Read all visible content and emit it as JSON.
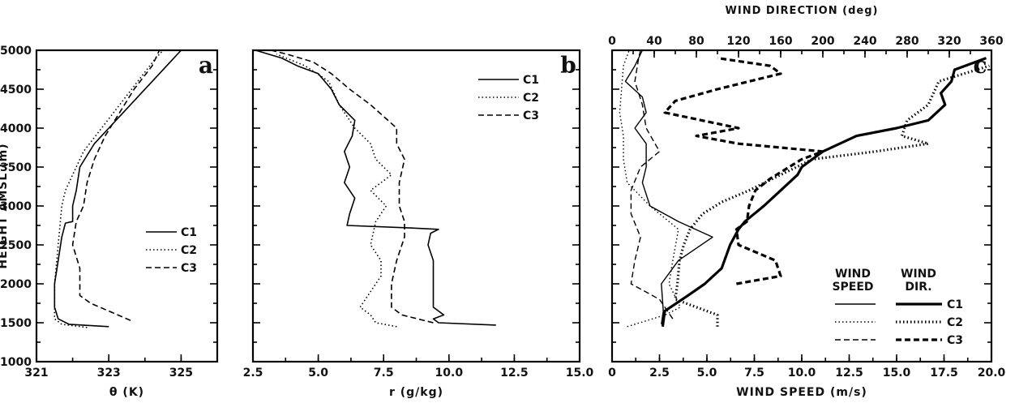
{
  "chart_data": [
    {
      "panel": "a",
      "type": "line",
      "xlabel": "θ (K)",
      "ylabel": "HEIGHT AMSL (m)",
      "xlim": [
        321,
        326
      ],
      "ylim": [
        1000,
        5000
      ],
      "xticks": [
        321,
        323,
        325
      ],
      "yticks": [
        1000,
        1500,
        2000,
        2500,
        3000,
        3500,
        4000,
        4500,
        5000
      ],
      "legend": "center-right",
      "series": [
        {
          "name": "C1",
          "style": "solid",
          "points": [
            [
              323.0,
              1450
            ],
            [
              321.9,
              1480
            ],
            [
              321.6,
              1550
            ],
            [
              321.5,
              1700
            ],
            [
              321.5,
              2000
            ],
            [
              321.6,
              2300
            ],
            [
              321.7,
              2600
            ],
            [
              321.8,
              2780
            ],
            [
              322.0,
              2800
            ],
            [
              322.0,
              3000
            ],
            [
              322.1,
              3200
            ],
            [
              322.2,
              3500
            ],
            [
              322.6,
              3800
            ],
            [
              323.0,
              4000
            ],
            [
              323.4,
              4200
            ],
            [
              323.8,
              4400
            ],
            [
              324.2,
              4600
            ],
            [
              324.6,
              4800
            ],
            [
              325.0,
              5000
            ]
          ]
        },
        {
          "name": "C2",
          "style": "dotted",
          "points": [
            [
              322.4,
              1440
            ],
            [
              321.7,
              1480
            ],
            [
              321.5,
              1550
            ],
            [
              321.5,
              2000
            ],
            [
              321.6,
              2500
            ],
            [
              321.7,
              3000
            ],
            [
              321.8,
              3200
            ],
            [
              322.0,
              3400
            ],
            [
              322.3,
              3700
            ],
            [
              322.8,
              4000
            ],
            [
              323.3,
              4300
            ],
            [
              323.8,
              4600
            ],
            [
              324.3,
              4900
            ],
            [
              324.5,
              5000
            ]
          ]
        },
        {
          "name": "C3",
          "style": "dashed",
          "points": [
            [
              323.6,
              1530
            ],
            [
              322.5,
              1750
            ],
            [
              322.2,
              1850
            ],
            [
              322.2,
              2200
            ],
            [
              322.0,
              2500
            ],
            [
              322.1,
              2800
            ],
            [
              322.3,
              3000
            ],
            [
              322.4,
              3300
            ],
            [
              322.6,
              3600
            ],
            [
              322.9,
              3900
            ],
            [
              323.3,
              4200
            ],
            [
              323.7,
              4500
            ],
            [
              324.2,
              4800
            ],
            [
              324.4,
              5000
            ]
          ]
        }
      ]
    },
    {
      "panel": "b",
      "type": "line",
      "xlabel": "r (g/kg)",
      "xlim": [
        2.5,
        15.0
      ],
      "ylim": [
        1000,
        5000
      ],
      "xticks": [
        2.5,
        5.0,
        7.5,
        10.0,
        12.5,
        15.0
      ],
      "legend": "top-right",
      "series": [
        {
          "name": "C1",
          "style": "solid",
          "points": [
            [
              11.8,
              1470
            ],
            [
              9.6,
              1500
            ],
            [
              9.4,
              1550
            ],
            [
              9.8,
              1600
            ],
            [
              9.4,
              1700
            ],
            [
              9.4,
              2000
            ],
            [
              9.4,
              2300
            ],
            [
              9.2,
              2500
            ],
            [
              9.3,
              2650
            ],
            [
              9.6,
              2700
            ],
            [
              8.4,
              2720
            ],
            [
              6.1,
              2750
            ],
            [
              6.2,
              2900
            ],
            [
              6.4,
              3100
            ],
            [
              6.0,
              3300
            ],
            [
              6.2,
              3500
            ],
            [
              6.0,
              3700
            ],
            [
              6.3,
              3900
            ],
            [
              6.4,
              4100
            ],
            [
              5.8,
              4300
            ],
            [
              5.5,
              4500
            ],
            [
              5.0,
              4700
            ],
            [
              4.2,
              4800
            ],
            [
              3.6,
              4900
            ],
            [
              2.6,
              5000
            ]
          ]
        },
        {
          "name": "C2",
          "style": "dotted",
          "points": [
            [
              8.0,
              1450
            ],
            [
              7.2,
              1500
            ],
            [
              7.0,
              1600
            ],
            [
              6.6,
              1700
            ],
            [
              7.0,
              1900
            ],
            [
              7.4,
              2100
            ],
            [
              7.4,
              2300
            ],
            [
              7.0,
              2500
            ],
            [
              7.2,
              2800
            ],
            [
              7.6,
              3000
            ],
            [
              7.0,
              3200
            ],
            [
              7.8,
              3400
            ],
            [
              7.2,
              3600
            ],
            [
              7.0,
              3800
            ],
            [
              6.4,
              4000
            ],
            [
              5.8,
              4300
            ],
            [
              5.4,
              4600
            ],
            [
              4.5,
              4800
            ],
            [
              3.4,
              4950
            ]
          ]
        },
        {
          "name": "C3",
          "style": "dashed",
          "points": [
            [
              9.4,
              1500
            ],
            [
              8.2,
              1600
            ],
            [
              7.8,
              1700
            ],
            [
              7.8,
              2000
            ],
            [
              8.0,
              2300
            ],
            [
              8.3,
              2600
            ],
            [
              8.3,
              2800
            ],
            [
              8.1,
              3000
            ],
            [
              8.1,
              3300
            ],
            [
              8.3,
              3600
            ],
            [
              8.0,
              3800
            ],
            [
              8.0,
              4000
            ],
            [
              7.0,
              4300
            ],
            [
              6.2,
              4500
            ],
            [
              5.5,
              4700
            ],
            [
              4.8,
              4850
            ],
            [
              3.8,
              4950
            ],
            [
              3.2,
              5000
            ]
          ]
        }
      ]
    },
    {
      "panel": "c",
      "type": "line",
      "xlabel": "WIND SPEED (m/s)",
      "x2label": "WIND DIRECTION (deg)",
      "xlim": [
        0,
        20
      ],
      "x2lim": [
        0,
        360
      ],
      "ylim": [
        1000,
        5000
      ],
      "xticks": [
        0,
        2.5,
        5.0,
        7.5,
        10.0,
        12.5,
        15.0,
        17.5,
        20.0
      ],
      "xtick_labels": [
        "0",
        "2.5",
        "5.0",
        "7.5",
        "10.0",
        "12.5",
        "15.0",
        "17.5",
        "20.0"
      ],
      "x2ticks": [
        0,
        40,
        80,
        120,
        160,
        200,
        240,
        280,
        320,
        360
      ],
      "legend": "bottom-right",
      "legend_headers": [
        "WIND SPEED",
        "WIND DIR."
      ],
      "speed_series": [
        {
          "name": "C1",
          "style": "solid",
          "points": [
            [
              2.6,
              1480
            ],
            [
              2.7,
              1650
            ],
            [
              2.6,
              2000
            ],
            [
              3.5,
              2300
            ],
            [
              5.3,
              2600
            ],
            [
              3.5,
              2800
            ],
            [
              2.0,
              3000
            ],
            [
              1.6,
              3300
            ],
            [
              1.8,
              3500
            ],
            [
              1.8,
              3800
            ],
            [
              1.2,
              4000
            ],
            [
              1.8,
              4200
            ],
            [
              1.6,
              4400
            ],
            [
              0.7,
              4600
            ],
            [
              1.2,
              4800
            ],
            [
              1.6,
              5000
            ]
          ]
        },
        {
          "name": "C2",
          "style": "dotted",
          "points": [
            [
              0.8,
              1450
            ],
            [
              2.8,
              1600
            ],
            [
              3.6,
              1700
            ],
            [
              3.0,
              2000
            ],
            [
              3.2,
              2300
            ],
            [
              3.5,
              2700
            ],
            [
              2.0,
              3000
            ],
            [
              0.8,
              3300
            ],
            [
              0.6,
              3600
            ],
            [
              0.6,
              3900
            ],
            [
              0.4,
              4200
            ],
            [
              0.5,
              4500
            ],
            [
              0.6,
              4800
            ],
            [
              0.9,
              5000
            ]
          ]
        },
        {
          "name": "C3",
          "style": "dashed",
          "points": [
            [
              3.2,
              1550
            ],
            [
              2.5,
              1800
            ],
            [
              1.0,
              2000
            ],
            [
              1.2,
              2300
            ],
            [
              1.5,
              2600
            ],
            [
              1.0,
              2900
            ],
            [
              1.0,
              3200
            ],
            [
              1.5,
              3500
            ],
            [
              2.5,
              3700
            ],
            [
              1.8,
              4000
            ],
            [
              1.6,
              4300
            ],
            [
              1.2,
              4600
            ],
            [
              1.4,
              4900
            ],
            [
              1.5,
              5000
            ]
          ]
        }
      ],
      "direction_series": [
        {
          "name": "C1",
          "style": "solid",
          "points": [
            [
              48,
              1450
            ],
            [
              50,
              1650
            ],
            [
              72,
              1850
            ],
            [
              88,
              2000
            ],
            [
              104,
              2200
            ],
            [
              112,
              2500
            ],
            [
              120,
              2700
            ],
            [
              126,
              2800
            ],
            [
              144,
              3000
            ],
            [
              160,
              3200
            ],
            [
              176,
              3400
            ],
            [
              180,
              3500
            ],
            [
              200,
              3700
            ],
            [
              232,
              3900
            ],
            [
              270,
              4000
            ],
            [
              300,
              4100
            ],
            [
              316,
              4300
            ],
            [
              312,
              4450
            ],
            [
              322,
              4600
            ],
            [
              325,
              4750
            ],
            [
              355,
              4900
            ]
          ]
        },
        {
          "name": "C2",
          "style": "dotted",
          "points": [
            [
              100,
              1450
            ],
            [
              100,
              1550
            ],
            [
              100,
              1600
            ],
            [
              60,
              1800
            ],
            [
              62,
              2000
            ],
            [
              64,
              2300
            ],
            [
              68,
              2500
            ],
            [
              74,
              2700
            ],
            [
              86,
              2900
            ],
            [
              104,
              3050
            ],
            [
              130,
              3200
            ],
            [
              190,
              3600
            ],
            [
              250,
              3700
            ],
            [
              300,
              3800
            ],
            [
              275,
              3900
            ],
            [
              280,
              4100
            ],
            [
              300,
              4300
            ],
            [
              310,
              4600
            ],
            [
              358,
              4800
            ]
          ]
        },
        {
          "name": "C3",
          "style": "dashed",
          "points": [
            [
              118,
              2000
            ],
            [
              160,
              2100
            ],
            [
              155,
              2300
            ],
            [
              120,
              2500
            ],
            [
              118,
              2700
            ],
            [
              128,
              2800
            ],
            [
              130,
              3000
            ],
            [
              136,
              3200
            ],
            [
              150,
              3350
            ],
            [
              180,
              3600
            ],
            [
              200,
              3700
            ],
            [
              120,
              3800
            ],
            [
              80,
              3900
            ],
            [
              120,
              4000
            ],
            [
              50,
              4200
            ],
            [
              60,
              4350
            ],
            [
              100,
              4500
            ],
            [
              160,
              4700
            ],
            [
              150,
              4800
            ],
            [
              100,
              4900
            ]
          ]
        }
      ]
    }
  ]
}
